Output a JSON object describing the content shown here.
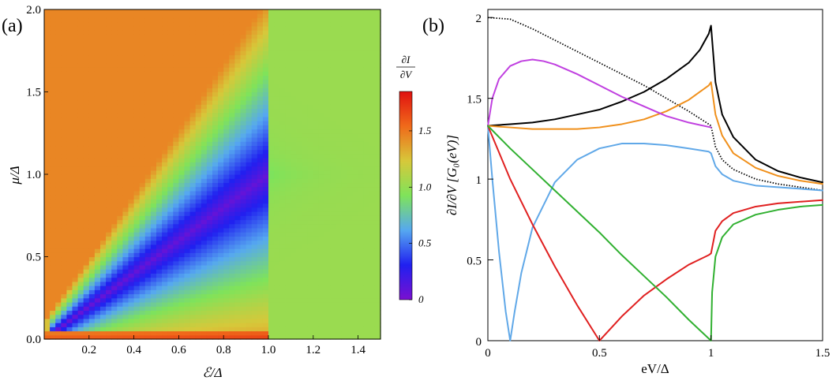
{
  "chart_data": [
    {
      "panel": "(a)",
      "type": "heatmap",
      "xlabel": "ℰ/Δ",
      "ylabel": "μ/Δ",
      "xlim": [
        0.0,
        1.5
      ],
      "ylim": [
        0.0,
        2.0
      ],
      "x_ticks": [
        "0.2",
        "0.4",
        "0.6",
        "0.8",
        "1.0",
        "1.2",
        "1.4"
      ],
      "x_tick_values": [
        0.2,
        0.4,
        0.6,
        0.8,
        1.0,
        1.2,
        1.4
      ],
      "y_ticks": [
        "0.0",
        "0.5",
        "1.0",
        "1.5",
        "2.0"
      ],
      "y_tick_values": [
        0.0,
        0.5,
        1.0,
        1.5,
        2.0
      ],
      "colorbar": {
        "title_num": "∂I",
        "title_den": "∂V",
        "ticks": [
          "0",
          "0.5",
          "1.0",
          "1.5"
        ],
        "tick_values": [
          0,
          0.5,
          1.0,
          1.5
        ],
        "range": [
          0,
          1.85
        ],
        "colors": [
          "#7a10d0",
          "#2020f0",
          "#56a8f0",
          "#7fe35a",
          "#d7c83a",
          "#f06a1a",
          "#e01010"
        ]
      }
    },
    {
      "panel": "(b)",
      "type": "line",
      "xlabel": "eV/Δ",
      "ylabel": "∂I/∂V [G₀(eV)]",
      "xlim": [
        0,
        1.5
      ],
      "ylim": [
        0,
        2.05
      ],
      "x_ticks": [
        "0",
        "0.5",
        "1",
        "1.5"
      ],
      "x_tick_values": [
        0,
        0.5,
        1,
        1.5
      ],
      "y_ticks": [
        "0",
        "0.5",
        "1",
        "1.5",
        "2"
      ],
      "y_tick_values": [
        0,
        0.5,
        1,
        1.5,
        2
      ],
      "series": [
        {
          "name": "black-dotted",
          "color": "#000000",
          "dashed": true,
          "x": [
            0,
            0.1,
            0.2,
            0.3,
            0.4,
            0.5,
            0.6,
            0.7,
            0.8,
            0.9,
            0.99,
            1.0,
            1.02,
            1.05,
            1.1,
            1.2,
            1.3,
            1.4,
            1.5
          ],
          "y": [
            2.0,
            1.99,
            1.93,
            1.86,
            1.79,
            1.72,
            1.65,
            1.58,
            1.5,
            1.42,
            1.34,
            1.33,
            1.2,
            1.12,
            1.06,
            1.0,
            0.97,
            0.95,
            0.93
          ]
        },
        {
          "name": "black",
          "color": "#000000",
          "x": [
            0,
            0.1,
            0.2,
            0.3,
            0.4,
            0.5,
            0.6,
            0.7,
            0.8,
            0.9,
            0.95,
            0.99,
            1.0,
            1.02,
            1.05,
            1.1,
            1.2,
            1.3,
            1.4,
            1.5
          ],
          "y": [
            1.33,
            1.34,
            1.35,
            1.37,
            1.4,
            1.43,
            1.48,
            1.54,
            1.62,
            1.72,
            1.8,
            1.9,
            1.95,
            1.6,
            1.4,
            1.26,
            1.12,
            1.05,
            1.01,
            0.98
          ]
        },
        {
          "name": "orange",
          "color": "#f0901c",
          "x": [
            0,
            0.1,
            0.2,
            0.3,
            0.4,
            0.5,
            0.6,
            0.7,
            0.8,
            0.9,
            0.95,
            0.99,
            1.0,
            1.02,
            1.05,
            1.1,
            1.2,
            1.3,
            1.4,
            1.5
          ],
          "y": [
            1.33,
            1.32,
            1.31,
            1.31,
            1.31,
            1.32,
            1.34,
            1.37,
            1.42,
            1.49,
            1.54,
            1.58,
            1.6,
            1.4,
            1.27,
            1.16,
            1.07,
            1.02,
            0.99,
            0.97
          ]
        },
        {
          "name": "magenta",
          "color": "#c040e0",
          "x": [
            0,
            0.02,
            0.05,
            0.1,
            0.15,
            0.2,
            0.25,
            0.3,
            0.4,
            0.5,
            0.6,
            0.7,
            0.8,
            0.9,
            1.0
          ],
          "y": [
            1.33,
            1.5,
            1.62,
            1.7,
            1.73,
            1.74,
            1.73,
            1.71,
            1.65,
            1.58,
            1.51,
            1.45,
            1.39,
            1.35,
            1.32
          ]
        },
        {
          "name": "blue",
          "color": "#60a8e8",
          "x": [
            0,
            0.02,
            0.05,
            0.08,
            0.1,
            0.12,
            0.15,
            0.2,
            0.3,
            0.4,
            0.5,
            0.6,
            0.7,
            0.8,
            0.9,
            0.99,
            1.0,
            1.02,
            1.05,
            1.1,
            1.2,
            1.3,
            1.4,
            1.5
          ],
          "y": [
            1.33,
            1.0,
            0.55,
            0.18,
            0.0,
            0.18,
            0.42,
            0.7,
            0.98,
            1.12,
            1.19,
            1.22,
            1.22,
            1.21,
            1.19,
            1.17,
            1.16,
            1.08,
            1.03,
            0.99,
            0.96,
            0.95,
            0.94,
            0.93
          ]
        },
        {
          "name": "red",
          "color": "#e02020",
          "x": [
            0,
            0.1,
            0.2,
            0.3,
            0.4,
            0.5,
            0.6,
            0.7,
            0.8,
            0.9,
            0.99,
            1.0,
            1.02,
            1.05,
            1.1,
            1.2,
            1.3,
            1.4,
            1.5
          ],
          "y": [
            1.33,
            1.0,
            0.72,
            0.46,
            0.22,
            0.0,
            0.15,
            0.28,
            0.38,
            0.47,
            0.53,
            0.54,
            0.68,
            0.74,
            0.79,
            0.83,
            0.85,
            0.86,
            0.87
          ]
        },
        {
          "name": "green",
          "color": "#30b030",
          "x": [
            0,
            0.1,
            0.2,
            0.3,
            0.4,
            0.5,
            0.6,
            0.7,
            0.8,
            0.9,
            1.0,
            1.005,
            1.02,
            1.05,
            1.1,
            1.2,
            1.3,
            1.4,
            1.5
          ],
          "y": [
            1.33,
            1.19,
            1.06,
            0.93,
            0.8,
            0.67,
            0.53,
            0.4,
            0.27,
            0.13,
            0.0,
            0.3,
            0.52,
            0.64,
            0.72,
            0.78,
            0.81,
            0.83,
            0.84
          ]
        }
      ]
    }
  ]
}
